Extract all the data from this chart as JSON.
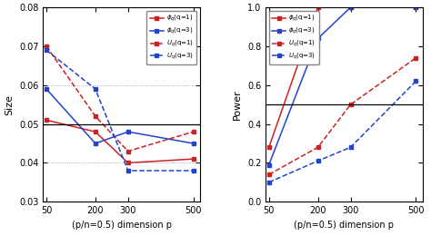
{
  "x": [
    50,
    200,
    300,
    500
  ],
  "left": {
    "phi_q1": [
      0.051,
      0.048,
      0.04,
      0.041
    ],
    "phi_q3": [
      0.059,
      0.045,
      0.048,
      0.045
    ],
    "U_q1": [
      0.07,
      0.052,
      0.043,
      0.048
    ],
    "U_q3": [
      0.069,
      0.059,
      0.038,
      0.038
    ],
    "ylabel": "Size",
    "ylim": [
      0.03,
      0.08
    ],
    "yticks": [
      0.03,
      0.04,
      0.05,
      0.06,
      0.07,
      0.08
    ],
    "hline": 0.05,
    "hline_dotted": [
      0.04,
      0.06
    ]
  },
  "right": {
    "phi_q1": [
      0.28,
      1.0,
      1.0,
      1.0
    ],
    "phi_q3": [
      0.19,
      0.84,
      1.0,
      1.0
    ],
    "U_q1": [
      0.14,
      0.28,
      0.5,
      0.74
    ],
    "U_q3": [
      0.1,
      0.21,
      0.28,
      0.62
    ],
    "ylabel": "Power",
    "ylim": [
      0,
      1.0
    ],
    "yticks": [
      0,
      0.2,
      0.4,
      0.6,
      0.8,
      1.0
    ],
    "hline": 0.5
  },
  "xlabel": "(p/n=0.5) dimension p",
  "xticks": [
    50,
    200,
    300,
    500
  ],
  "color_red": "#cc2222",
  "color_blue": "#2244cc",
  "marker": "s",
  "markersize": 3,
  "linewidth": 1.1
}
